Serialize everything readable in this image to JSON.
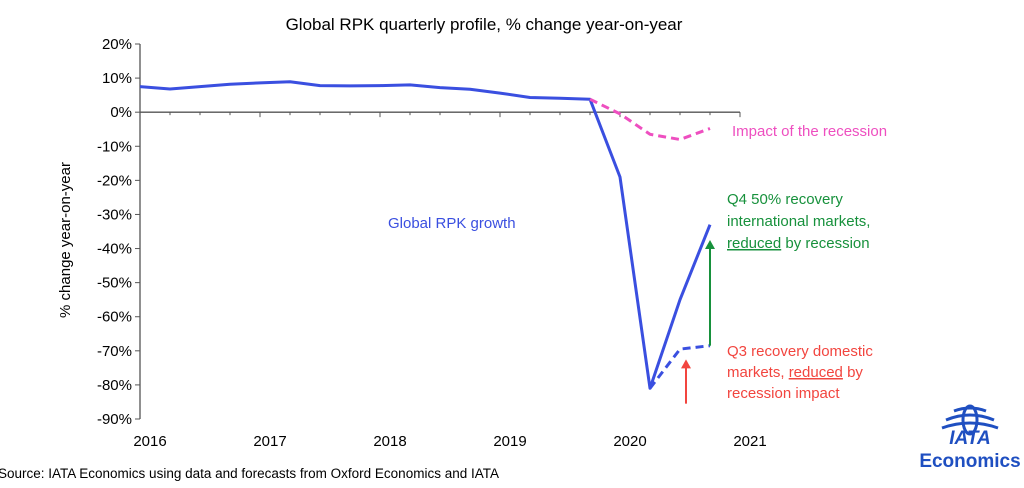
{
  "chart_data": {
    "type": "line",
    "title": "Global RPK quarterly profile, % change year-on-year",
    "ylabel": "% change year-on-year",
    "xlabel": "",
    "ylim": [
      -90,
      20
    ],
    "xlim": [
      2016,
      2021
    ],
    "y_ticks": [
      "20%",
      "10%",
      "0%",
      "-10%",
      "-20%",
      "-30%",
      "-40%",
      "-50%",
      "-60%",
      "-70%",
      "-80%",
      "-90%"
    ],
    "y_tick_values": [
      20,
      10,
      0,
      -10,
      -20,
      -30,
      -40,
      -50,
      -60,
      -70,
      -80,
      -90
    ],
    "x_ticks": [
      "2016",
      "2017",
      "2018",
      "2019",
      "2020",
      "2021"
    ],
    "x_tick_values": [
      2016,
      2017,
      2018,
      2019,
      2020,
      2021
    ],
    "grid": false,
    "series": [
      {
        "name": "Global RPK growth",
        "style": "solid",
        "color": "#3a4fe0",
        "x": [
          2016.0,
          2016.25,
          2016.5,
          2016.75,
          2017.0,
          2017.25,
          2017.5,
          2017.75,
          2018.0,
          2018.25,
          2018.5,
          2018.75,
          2019.0,
          2019.25,
          2019.5,
          2019.75,
          2020.0,
          2020.25,
          2020.5,
          2020.75
        ],
        "values": [
          7.5,
          6.8,
          7.5,
          8.2,
          8.6,
          8.9,
          7.8,
          7.7,
          7.8,
          8.0,
          7.2,
          6.7,
          5.6,
          4.3,
          4.1,
          3.8,
          -19.0,
          -81.0,
          -55.0,
          -33.0
        ]
      },
      {
        "name": "Impact of the recession",
        "style": "dashed",
        "color": "#ee4fc0",
        "x": [
          2019.75,
          2020.0,
          2020.25,
          2020.5,
          2020.75
        ],
        "values": [
          3.8,
          -0.5,
          -6.5,
          -8.0,
          -4.8
        ]
      },
      {
        "name": "Q3 recovery domestic markets, reduced by recession impact",
        "style": "dashed",
        "color": "#3a4fe0",
        "x": [
          2020.25,
          2020.5,
          2020.75
        ],
        "values": [
          -81.0,
          -69.5,
          -68.5
        ]
      }
    ],
    "annotations": [
      {
        "id": "impact",
        "color": "#ee4fc0",
        "lines": [
          "Impact of the recession"
        ]
      },
      {
        "id": "growth",
        "color": "#3a4fe0",
        "lines": [
          "Global RPK growth"
        ]
      },
      {
        "id": "q4",
        "color": "#17913c",
        "lines": [
          "Q4 50% recovery",
          "international markets,",
          "reduced by recession"
        ],
        "underline": "reduced"
      },
      {
        "id": "q3",
        "color": "#f2453f",
        "lines": [
          "Q3 recovery domestic",
          "markets, reduced by",
          "recession impact"
        ],
        "underline": "reduced"
      }
    ],
    "arrows": [
      {
        "color": "#17913c",
        "x": 2020.75,
        "from": -68.5,
        "to": -37.5
      },
      {
        "color": "#f2453f",
        "x": 2020.55,
        "from": -85.5,
        "to": -72.5
      }
    ]
  },
  "source": "Source: IATA Economics using data and forecasts from Oxford Economics and IATA",
  "logo": {
    "brand": "IATA",
    "text": "Economics",
    "color": "#1f4fc1"
  }
}
